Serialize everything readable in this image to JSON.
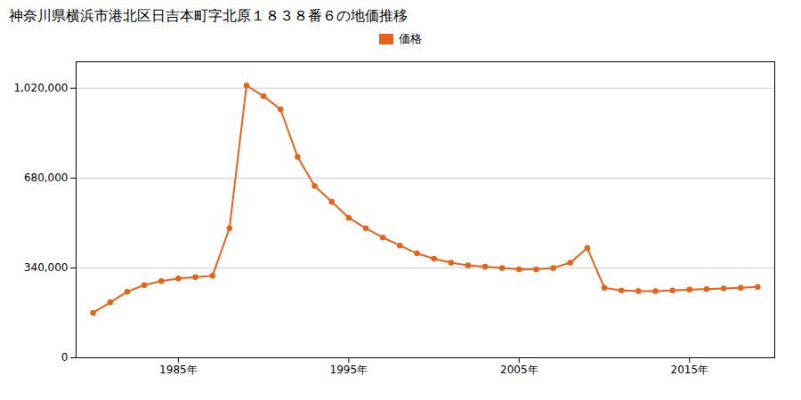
{
  "chart_data": {
    "type": "line",
    "title": "神奈川県横浜市港北区日吉本町字北原１８３８番６の地価推移",
    "x": [
      1980,
      1981,
      1982,
      1983,
      1984,
      1985,
      1986,
      1987,
      1988,
      1989,
      1990,
      1991,
      1992,
      1993,
      1994,
      1995,
      1996,
      1997,
      1998,
      1999,
      2000,
      2001,
      2002,
      2003,
      2004,
      2005,
      2006,
      2007,
      2008,
      2009,
      2010,
      2011,
      2012,
      2013,
      2014,
      2015,
      2016,
      2017,
      2018,
      2019
    ],
    "series": [
      {
        "name": "価格",
        "color": "#e8621a",
        "marker": "circle",
        "values": [
          170000,
          210000,
          250000,
          275000,
          290000,
          300000,
          305000,
          310000,
          490000,
          1030000,
          990000,
          940000,
          760000,
          650000,
          590000,
          530000,
          490000,
          455000,
          425000,
          395000,
          375000,
          360000,
          350000,
          345000,
          340000,
          335000,
          335000,
          340000,
          360000,
          415000,
          265000,
          255000,
          252000,
          252000,
          255000,
          258000,
          260000,
          262000,
          265000,
          268000
        ]
      }
    ],
    "xlim": [
      1979,
      2020
    ],
    "xticks": [
      {
        "value": 1985,
        "label": "1985年"
      },
      {
        "value": 1995,
        "label": "1995年"
      },
      {
        "value": 2005,
        "label": "2005年"
      },
      {
        "value": 2015,
        "label": "2015年"
      }
    ],
    "ylim": [
      0,
      1120000
    ],
    "yticks": [
      0,
      {
        "value": 340000,
        "label": "340,000"
      },
      {
        "value": 680000,
        "label": "680,000"
      },
      {
        "value": 1020000,
        "label": "1,020,000"
      }
    ],
    "grid": "y",
    "legend": "top"
  }
}
